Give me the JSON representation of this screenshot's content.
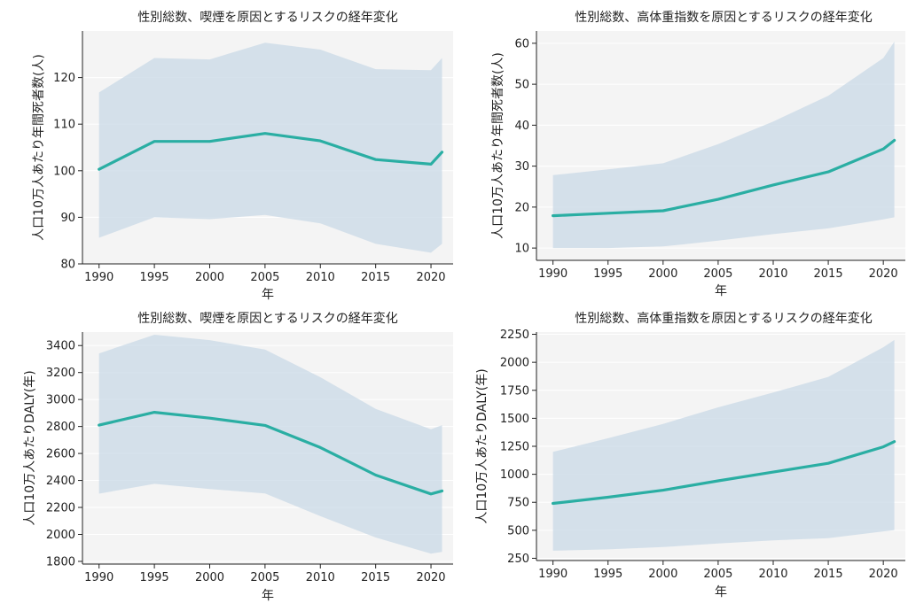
{
  "chart_data": [
    {
      "type": "area",
      "title": "性別総数、喫煙を原因とするリスクの経年変化",
      "xlabel": "年",
      "ylabel": "人口10万人あたり年間死者数(人)",
      "x": [
        1990,
        1995,
        2000,
        2005,
        2010,
        2015,
        2020,
        2021
      ],
      "series": [
        {
          "name": "mean",
          "values": [
            100.3,
            106.3,
            106.3,
            108.0,
            106.4,
            102.4,
            101.4,
            104.0
          ]
        },
        {
          "name": "upper",
          "values": [
            116.8,
            124.2,
            123.9,
            127.5,
            126.0,
            121.8,
            121.6,
            124.2
          ]
        },
        {
          "name": "lower",
          "values": [
            85.6,
            90.0,
            89.6,
            90.5,
            88.7,
            84.3,
            82.4,
            84.3
          ]
        }
      ],
      "xticks": [
        1990,
        1995,
        2000,
        2005,
        2010,
        2015,
        2020
      ],
      "yticks": [
        80,
        90,
        100,
        110,
        120
      ],
      "xlim": [
        1988.5,
        2022
      ],
      "ylim": [
        80,
        130
      ]
    },
    {
      "type": "area",
      "title": "性別総数、高体重指数を原因とするリスクの経年変化",
      "xlabel": "年",
      "ylabel": "人口10万人あたり年間死者数(人)",
      "x": [
        1990,
        1995,
        2000,
        2005,
        2010,
        2015,
        2020,
        2021
      ],
      "series": [
        {
          "name": "mean",
          "values": [
            17.9,
            18.5,
            19.1,
            21.9,
            25.4,
            28.6,
            34.2,
            36.3
          ]
        },
        {
          "name": "upper",
          "values": [
            27.8,
            29.2,
            30.7,
            35.4,
            40.9,
            47.2,
            56.4,
            60.4
          ]
        },
        {
          "name": "lower",
          "values": [
            10.0,
            10.0,
            10.4,
            11.8,
            13.4,
            14.8,
            17.0,
            17.5
          ]
        }
      ],
      "xticks": [
        1990,
        1995,
        2000,
        2005,
        2010,
        2015,
        2020
      ],
      "yticks": [
        10,
        20,
        30,
        40,
        50,
        60
      ],
      "xlim": [
        1988.5,
        2022
      ],
      "ylim": [
        7,
        63
      ]
    },
    {
      "type": "area",
      "title": "性別総数、喫煙を原因とするリスクの経年変化",
      "xlabel": "年",
      "ylabel": "人口10万人あたりDALY(年)",
      "x": [
        1990,
        1995,
        2000,
        2005,
        2010,
        2015,
        2020,
        2021
      ],
      "series": [
        {
          "name": "mean",
          "values": [
            2810,
            2905,
            2862,
            2808,
            2644,
            2440,
            2300,
            2322
          ]
        },
        {
          "name": "upper",
          "values": [
            3342,
            3480,
            3440,
            3370,
            3165,
            2930,
            2780,
            2810
          ]
        },
        {
          "name": "lower",
          "values": [
            2302,
            2375,
            2337,
            2303,
            2135,
            1977,
            1857,
            1870
          ]
        }
      ],
      "xticks": [
        1990,
        1995,
        2000,
        2005,
        2010,
        2015,
        2020
      ],
      "yticks": [
        1800,
        2000,
        2200,
        2400,
        2600,
        2800,
        3000,
        3200,
        3400
      ],
      "xlim": [
        1988.5,
        2022
      ],
      "ylim": [
        1780,
        3500
      ]
    },
    {
      "type": "area",
      "title": "性別総数、高体重指数を原因とするリスクの経年変化",
      "xlabel": "年",
      "ylabel": "人口10万人あたりDALY(年)",
      "x": [
        1990,
        1995,
        2000,
        2005,
        2010,
        2015,
        2020,
        2021
      ],
      "series": [
        {
          "name": "mean",
          "values": [
            740,
            795,
            858,
            942,
            1020,
            1098,
            1245,
            1292
          ]
        },
        {
          "name": "upper",
          "values": [
            1200,
            1322,
            1450,
            1598,
            1730,
            1870,
            2135,
            2200
          ]
        },
        {
          "name": "lower",
          "values": [
            318,
            330,
            350,
            382,
            410,
            430,
            490,
            502
          ]
        }
      ],
      "xticks": [
        1990,
        1995,
        2000,
        2005,
        2010,
        2015,
        2020
      ],
      "yticks": [
        250,
        500,
        750,
        1000,
        1250,
        1500,
        1750,
        2000,
        2250
      ],
      "xlim": [
        1988.5,
        2022
      ],
      "ylim": [
        230,
        2270
      ]
    }
  ]
}
